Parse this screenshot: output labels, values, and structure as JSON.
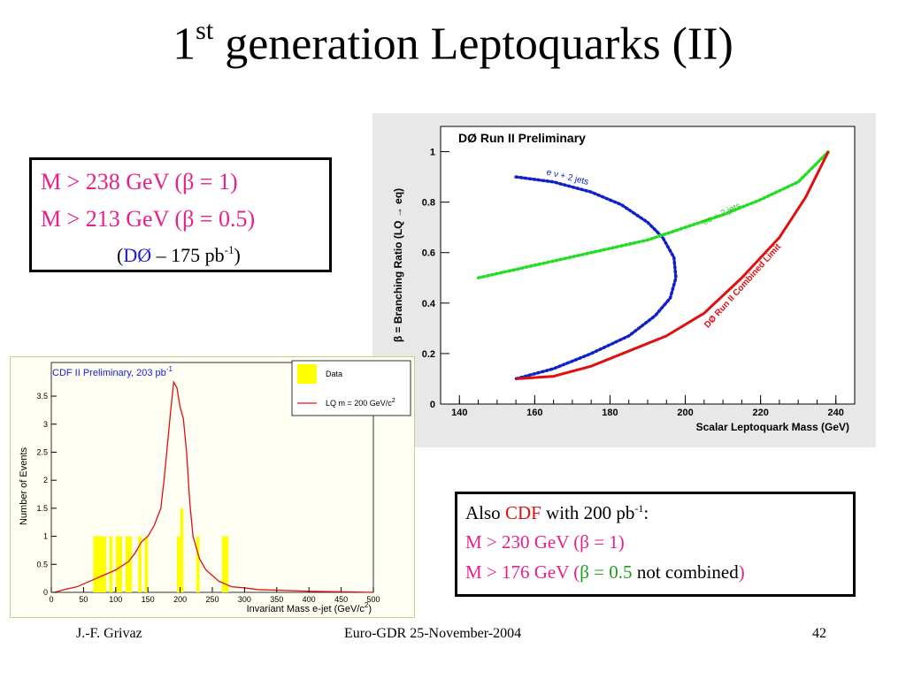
{
  "slide": {
    "title_prefix": "1",
    "title_sup": "st",
    "title_rest": " generation Leptoquarks (II)"
  },
  "d0_box": {
    "line1_main": "M > 238 GeV (",
    "line1_beta": "β = 1)",
    "line2_main": "M > 213 GeV (",
    "line2_beta": "β = 0.5)",
    "line3_open": "(",
    "line3_exp": "DØ",
    "line3_mid": " – 175 pb",
    "line3_sup": "-1",
    "line3_close": ")"
  },
  "cdf_box": {
    "also": "Also ",
    "cdf": "CDF",
    "with": " with 200 pb",
    "with_sup": "-1",
    "with_end": ":",
    "line2": "M > 230 GeV (β = 1)",
    "line3_main": "M > 176 GeV (",
    "line3_green": "β = 0.5",
    "line3_black": " not combined",
    "line3_close": ")"
  },
  "footer": {
    "author": "J.-F. Grivaz",
    "event": "Euro-GDR 25-November-2004",
    "page": "42"
  },
  "colors": {
    "pink": "#e8208a",
    "d0_blue": "#1a1ad8",
    "limit_red": "#e01010",
    "ee_green": "#22dd22",
    "enu_blue": "#1020c8",
    "data_yellow": "#ffff00"
  },
  "chart_data": [
    {
      "type": "line",
      "title": "DØ Run II Preliminary",
      "xlabel": "Scalar Leptoquark Mass  (GeV)",
      "ylabel": "β = Branching Ratio (LQ → eq)",
      "xlim": [
        135,
        245
      ],
      "ylim": [
        0,
        1.1
      ],
      "xticks": [
        140,
        160,
        180,
        200,
        220,
        240
      ],
      "yticks": [
        0,
        0.2,
        0.4,
        0.6,
        0.8,
        1
      ],
      "ytick_labels": [
        "0",
        "0.2",
        "0.4",
        "0.6",
        "0.8",
        "1"
      ],
      "series": [
        {
          "name": "e ν + 2 jets",
          "color": "#1020c8",
          "style": "dotted",
          "x": [
            155,
            165,
            175,
            183,
            190,
            194,
            197,
            197.5,
            196,
            192,
            185,
            175,
            165,
            155
          ],
          "y": [
            0.9,
            0.88,
            0.84,
            0.79,
            0.72,
            0.66,
            0.58,
            0.5,
            0.42,
            0.35,
            0.27,
            0.2,
            0.14,
            0.1
          ]
        },
        {
          "name": "ee + 2 jets",
          "color": "#22dd22",
          "style": "dotted",
          "x": [
            145,
            160,
            175,
            190,
            200,
            210,
            220,
            230,
            238
          ],
          "y": [
            0.5,
            0.55,
            0.6,
            0.65,
            0.7,
            0.75,
            0.81,
            0.88,
            1.0
          ]
        },
        {
          "name": "DØ Run II Combined Limit",
          "color": "#e01010",
          "style": "solid",
          "x": [
            155,
            165,
            175,
            185,
            195,
            205,
            215,
            225,
            232,
            238
          ],
          "y": [
            0.1,
            0.11,
            0.15,
            0.21,
            0.27,
            0.36,
            0.5,
            0.66,
            0.82,
            1.0
          ]
        }
      ],
      "annotations": [
        "e ν + 2 jets",
        "ee + 2 jets",
        "DØ Run II Combined Limit"
      ]
    },
    {
      "type": "bar",
      "title": "CDF II Preliminary, 203 pb",
      "title_sup": "-1",
      "xlabel": "Invariant Mass e-jet (GeV/c",
      "xlabel_sup": "2",
      "xlabel_end": ")",
      "ylabel": "Number of Events",
      "xlim": [
        0,
        500
      ],
      "ylim": [
        0,
        4.1
      ],
      "xticks": [
        0,
        50,
        100,
        150,
        200,
        250,
        300,
        350,
        400,
        450,
        500
      ],
      "yticks": [
        0,
        0.5,
        1,
        1.5,
        2,
        2.5,
        3,
        3.5
      ],
      "ytick_labels": [
        "0",
        "0.5",
        "1",
        "1.5",
        "2",
        "2.5",
        "3",
        "3.5"
      ],
      "legend": [
        "Data",
        "LQ m = 200 GeV/c"
      ],
      "legend_sup": "2",
      "data_bins": [
        {
          "x0": 65,
          "x1": 85,
          "value": 1
        },
        {
          "x0": 90,
          "x1": 95,
          "value": 1
        },
        {
          "x0": 100,
          "x1": 110,
          "value": 1
        },
        {
          "x0": 115,
          "x1": 125,
          "value": 1
        },
        {
          "x0": 135,
          "x1": 140,
          "value": 1
        },
        {
          "x0": 145,
          "x1": 150,
          "value": 1
        },
        {
          "x0": 195,
          "x1": 200,
          "value": 1
        },
        {
          "x0": 200,
          "x1": 205,
          "value": 1.5
        },
        {
          "x0": 225,
          "x1": 230,
          "value": 1
        },
        {
          "x0": 265,
          "x1": 275,
          "value": 1
        }
      ],
      "lq_curve": {
        "x": [
          5,
          20,
          40,
          60,
          80,
          100,
          120,
          130,
          140,
          150,
          160,
          170,
          175,
          180,
          185,
          190,
          195,
          200,
          205,
          210,
          215,
          220,
          230,
          240,
          250,
          260,
          270,
          280,
          300,
          320,
          350,
          400,
          450,
          500
        ],
        "y": [
          0.0,
          0.05,
          0.1,
          0.2,
          0.3,
          0.4,
          0.55,
          0.7,
          0.9,
          1.0,
          1.2,
          1.5,
          2.0,
          2.6,
          3.2,
          3.75,
          3.65,
          3.3,
          3.1,
          2.5,
          1.6,
          1.0,
          0.6,
          0.4,
          0.3,
          0.2,
          0.15,
          0.1,
          0.08,
          0.05,
          0.04,
          0.02,
          0.01,
          0.0
        ]
      }
    }
  ]
}
